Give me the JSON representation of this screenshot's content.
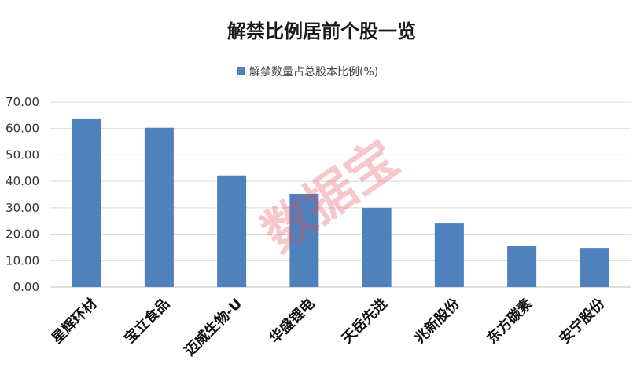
{
  "chart_data": {
    "type": "bar",
    "title": "解禁比例居前个股一览",
    "legend_position": "top",
    "grid": true,
    "ylim": [
      0,
      70
    ],
    "y_ticks": [
      "0.00",
      "10.00",
      "20.00",
      "30.00",
      "40.00",
      "50.00",
      "60.00",
      "70.00"
    ],
    "categories": [
      "星辉环材",
      "宝立食品",
      "迈威生物-U",
      "华盛锂电",
      "天岳先进",
      "兆新股份",
      "东方碳素",
      "安宁股份"
    ],
    "series": [
      {
        "name": "解禁数量占总股本比例(%)",
        "color": "#4f81bd",
        "values": [
          63.5,
          60.3,
          42.2,
          35.3,
          30.0,
          24.3,
          15.6,
          14.8
        ]
      }
    ]
  },
  "watermark": "数据宝",
  "watermark_color": "#e8454f"
}
